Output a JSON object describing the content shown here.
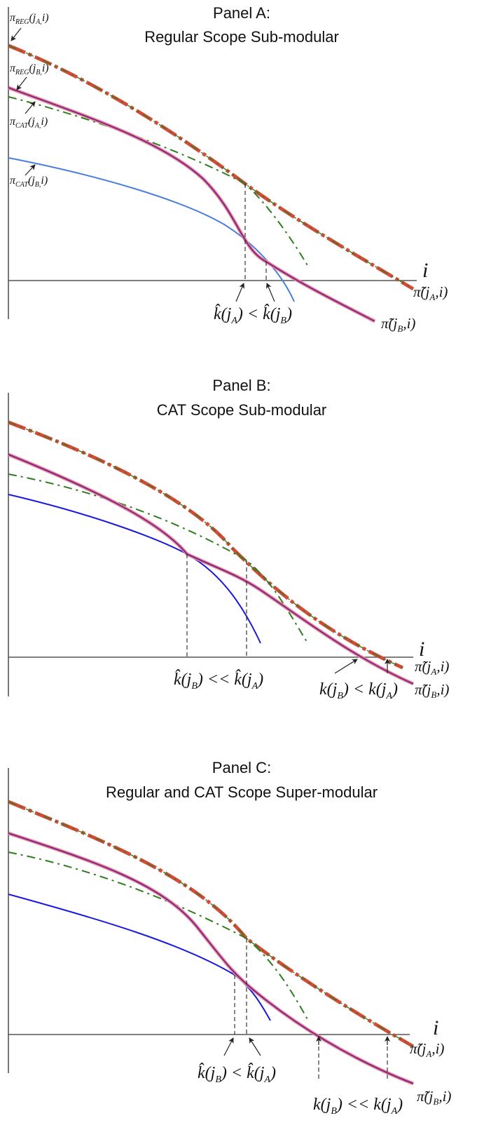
{
  "panels": [
    {
      "title_line1": "Panel A:",
      "title_line2": "Regular Scope Sub-modular",
      "labels": {
        "pi_reg_a": "π",
        "pi_reg_a_sub": "REG",
        "pi_reg_a_args": "(j",
        "pi_reg_a_jsub": "A,",
        "pi_reg_a_end": "i)",
        "pi_reg_b": "π",
        "pi_reg_b_sub": "REG",
        "pi_reg_b_args": "(j",
        "pi_reg_b_jsub": "B,",
        "pi_reg_b_end": "i)",
        "pi_cat_a": "π",
        "pi_cat_a_sub": "CAT",
        "pi_cat_a_args": "(j",
        "pi_cat_a_jsub": "A,",
        "pi_cat_a_end": "i)",
        "pi_cat_b": "π",
        "pi_cat_b_sub": "CAT",
        "pi_cat_b_args": "(j",
        "pi_cat_b_jsub": "B,",
        "pi_cat_b_end": "i)",
        "axis_i": "i",
        "khat_expr_1": "k̂(j",
        "khat_expr_sub1": "A",
        "khat_expr_mid": ") < k̂(j",
        "khat_expr_sub2": "B",
        "khat_expr_end": ")",
        "tilde_a": "π̃(j",
        "tilde_a_sub": "A",
        "tilde_a_end": ",i)",
        "tilde_b": "π̃(j",
        "tilde_b_sub": "B",
        "tilde_b_end": ",i)"
      }
    },
    {
      "title_line1": "Panel B:",
      "title_line2": "CAT Scope Sub-modular",
      "labels": {
        "axis_i": "i",
        "khat_expr_1": "k̂(j",
        "khat_expr_sub1": "B",
        "khat_expr_mid": ") << k̂(j",
        "khat_expr_sub2": "A",
        "khat_expr_end": ")",
        "k_expr_1": "k(j",
        "k_expr_sub1": "B",
        "k_expr_mid": ") < k(j",
        "k_expr_sub2": "A",
        "k_expr_end": ")",
        "tilde_a": "π̃(j",
        "tilde_a_sub": "A",
        "tilde_a_end": ",i)",
        "tilde_b": "π̃(j",
        "tilde_b_sub": "B",
        "tilde_b_end": ",i)"
      }
    },
    {
      "title_line1": "Panel C:",
      "title_line2": "Regular and CAT Scope Super-modular",
      "labels": {
        "axis_i": "i",
        "khat_expr_1": "k̂(j",
        "khat_expr_sub1": "B",
        "khat_expr_mid": ") < k̂(j",
        "khat_expr_sub2": "A",
        "khat_expr_end": ")",
        "k_expr_1": "k(j",
        "k_expr_sub1": "B",
        "k_expr_mid": ") << k(j",
        "k_expr_sub2": "A",
        "k_expr_end": ")",
        "tilde_a": "π̃(j",
        "tilde_a_sub": "A",
        "tilde_a_end": ",i)",
        "tilde_b": "π̃(j",
        "tilde_b_sub": "B",
        "tilde_b_end": ",i)"
      }
    }
  ],
  "colors": {
    "reg_a": "#d64a38",
    "reg_a_dash": "#2e7d1f",
    "cat_a": "#2e7d1f",
    "reg_b_under": "#e88a96",
    "reg_b": "#7a1f8a",
    "cat_b_panelA": "#4a7fdc",
    "cat_b": "#1a1adc"
  }
}
